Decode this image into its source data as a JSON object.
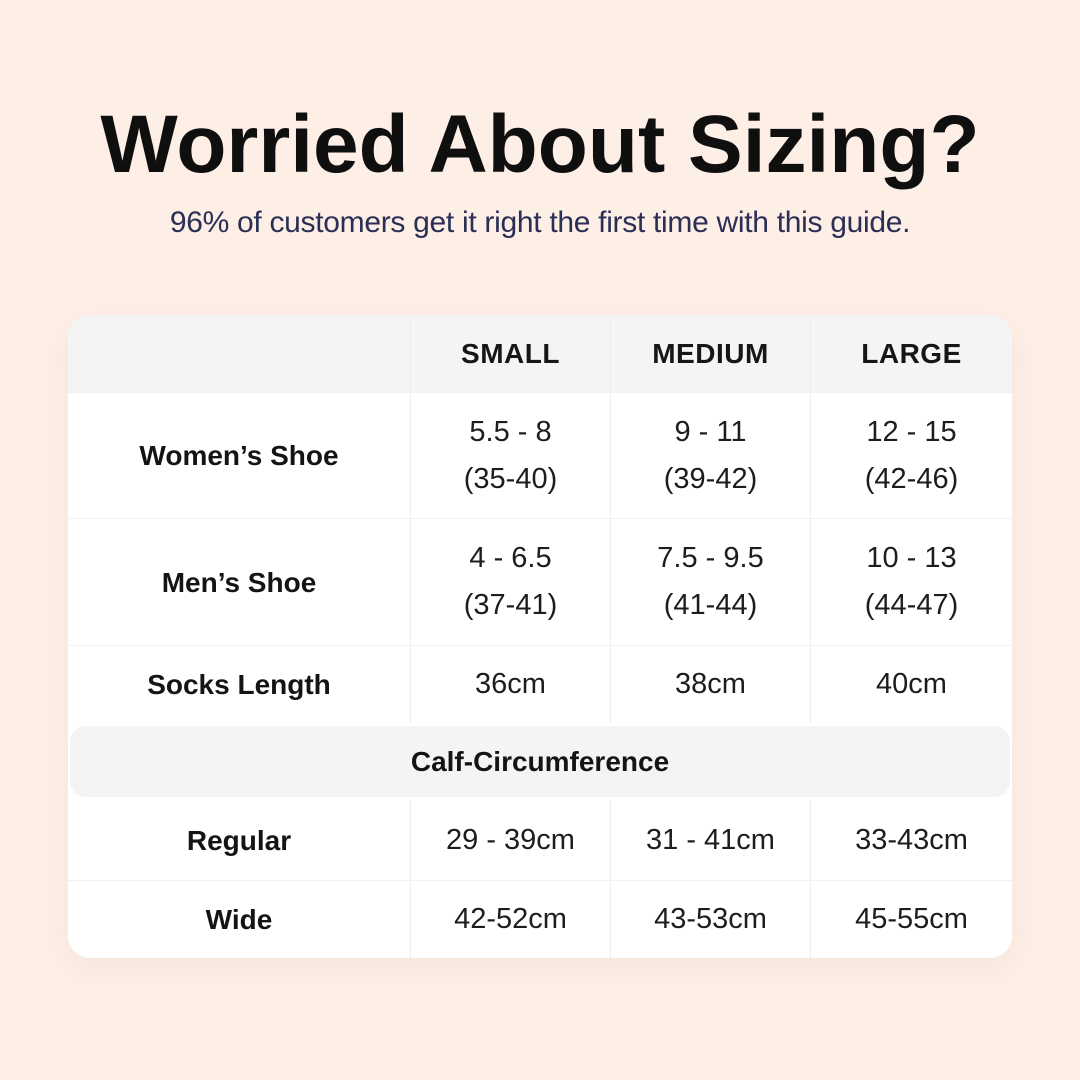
{
  "header": {
    "title": "Worried About Sizing?",
    "subtitle": "96% of customers get it right the first time with this guide."
  },
  "table": {
    "column_headers": {
      "size_small": "SMALL",
      "size_medium": "MEDIUM",
      "size_large": "LARGE"
    },
    "rows": {
      "womens_shoe": {
        "label": "Women’s Shoe",
        "small_line1": "5.5 - 8",
        "small_line2": "(35-40)",
        "medium_line1": "9 - 11",
        "medium_line2": "(39-42)",
        "large_line1": "12 - 15",
        "large_line2": "(42-46)"
      },
      "mens_shoe": {
        "label": "Men’s Shoe",
        "small_line1": "4 - 6.5",
        "small_line2": "(37-41)",
        "medium_line1": "7.5 - 9.5",
        "medium_line2": "(41-44)",
        "large_line1": "10 - 13",
        "large_line2": "(44-47)"
      },
      "socks_length": {
        "label": "Socks Length",
        "small": "36cm",
        "medium": "38cm",
        "large": "40cm"
      }
    },
    "calf_section": {
      "header": "Calf-Circumference",
      "rows": {
        "regular": {
          "label": "Regular",
          "small": "29 - 39cm",
          "medium": "31 - 41cm",
          "large": "33-43cm"
        },
        "wide": {
          "label": "Wide",
          "small": "42-52cm",
          "medium": "43-53cm",
          "large": "45-55cm"
        }
      }
    }
  },
  "colors": {
    "page_background": "#fdeee6",
    "card_background": "#ffffff",
    "band_background": "#f4f4f5",
    "title_text": "#0f0f0f",
    "subtitle_text": "#2b2f55",
    "table_text": "#1d1d1f",
    "divider": "#ececec"
  },
  "chart_data": {
    "type": "table",
    "title": "Worried About Sizing?",
    "columns": [
      "",
      "SMALL",
      "MEDIUM",
      "LARGE"
    ],
    "rows": [
      [
        "Women’s Shoe",
        "5.5 - 8 (35-40)",
        "9 - 11 (39-42)",
        "12 - 15 (42-46)"
      ],
      [
        "Men’s Shoe",
        "4 - 6.5 (37-41)",
        "7.5 - 9.5 (41-44)",
        "10 - 13 (44-47)"
      ],
      [
        "Socks Length",
        "36cm",
        "38cm",
        "40cm"
      ],
      [
        "Calf-Circumference",
        "",
        "",
        ""
      ],
      [
        "Regular",
        "29 - 39cm",
        "31 - 41cm",
        "33-43cm"
      ],
      [
        "Wide",
        "42-52cm",
        "43-53cm",
        "45-55cm"
      ]
    ]
  }
}
